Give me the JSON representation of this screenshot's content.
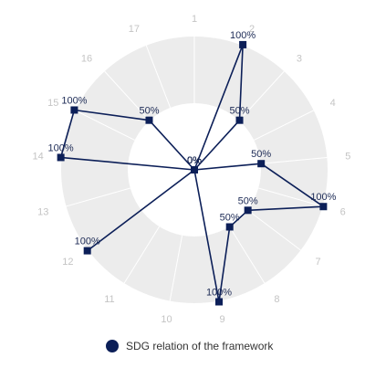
{
  "chart_data": {
    "type": "radar",
    "categories": [
      "1",
      "2",
      "3",
      "4",
      "5",
      "6",
      "7",
      "8",
      "9",
      "10",
      "11",
      "12",
      "13",
      "14",
      "15",
      "16",
      "17"
    ],
    "series": [
      {
        "name": "SDG relation of the framework",
        "values": [
          0,
          100,
          50,
          0,
          50,
          100,
          50,
          50,
          100,
          0,
          0,
          100,
          0,
          100,
          100,
          50,
          0
        ],
        "labels": [
          "0%",
          "100%",
          "50%",
          "0%",
          "50%",
          "100%",
          "50%",
          "50%",
          "100%",
          "0%",
          "0%",
          "100%",
          "0%",
          "100%",
          "100%",
          "50%",
          "0%"
        ]
      }
    ],
    "rlim": [
      0,
      100
    ],
    "legend_position": "bottom",
    "colors": {
      "series": "#0c1f58",
      "band": "#ececec",
      "inner": "#ffffff",
      "grid": "#ffffff",
      "category_label": "#c4c4c4"
    }
  }
}
